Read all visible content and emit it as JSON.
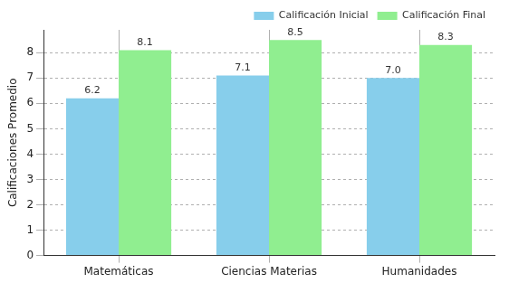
{
  "chart_data": {
    "type": "bar",
    "y_label": "Calificaciones Promedio",
    "categories": [
      "Matemáticas",
      "Ciencias Materias",
      "Humanidades"
    ],
    "series": [
      {
        "name": "Calificación Inicial",
        "color": "#87ceeb",
        "values": [
          6.2,
          7.1,
          7.0
        ],
        "value_labels": [
          "6.2",
          "7.1",
          "7.0"
        ]
      },
      {
        "name": "Calificación Final",
        "color": "#90ee90",
        "values": [
          8.1,
          8.5,
          8.3
        ],
        "value_labels": [
          "8.1",
          "8.5",
          "8.3"
        ]
      }
    ],
    "ylim": [
      0,
      8.9
    ],
    "yticks": [
      0,
      1,
      2,
      3,
      4,
      5,
      6,
      7,
      8
    ],
    "grid": true,
    "legend": "upper right",
    "data_labels": true
  }
}
